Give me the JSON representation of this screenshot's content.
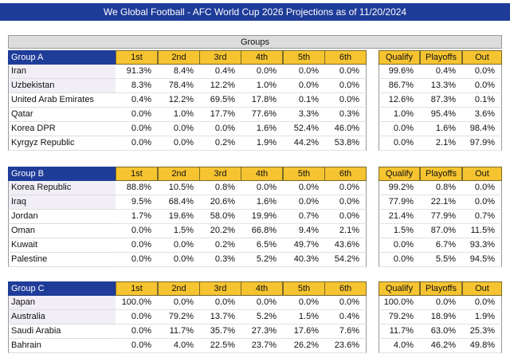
{
  "title": "We Global Football - AFC World Cup 2026 Projections as of 11/20/2024",
  "groups_header": "Groups",
  "groups": [
    {
      "name": "Group A",
      "place_headers": [
        "1st",
        "2nd",
        "3rd",
        "4th",
        "5th",
        "6th"
      ],
      "outcome_headers": [
        "Qualify",
        "Playoffs",
        "Out"
      ],
      "rows": [
        {
          "team": "Iran",
          "places": [
            "91.3%",
            "8.4%",
            "0.4%",
            "0.0%",
            "0.0%",
            "0.0%"
          ],
          "outcomes": [
            "99.6%",
            "0.4%",
            "0.0%"
          ]
        },
        {
          "team": "Uzbekistan",
          "places": [
            "8.3%",
            "78.4%",
            "12.2%",
            "1.0%",
            "0.0%",
            "0.0%"
          ],
          "outcomes": [
            "86.7%",
            "13.3%",
            "0.0%"
          ]
        },
        {
          "team": "United Arab Emirates",
          "places": [
            "0.4%",
            "12.2%",
            "69.5%",
            "17.8%",
            "0.1%",
            "0.0%"
          ],
          "outcomes": [
            "12.6%",
            "87.3%",
            "0.1%"
          ]
        },
        {
          "team": "Qatar",
          "places": [
            "0.0%",
            "1.0%",
            "17.7%",
            "77.6%",
            "3.3%",
            "0.3%"
          ],
          "outcomes": [
            "1.0%",
            "95.4%",
            "3.6%"
          ]
        },
        {
          "team": "Korea DPR",
          "places": [
            "0.0%",
            "0.0%",
            "0.0%",
            "1.6%",
            "52.4%",
            "46.0%"
          ],
          "outcomes": [
            "0.0%",
            "1.6%",
            "98.4%"
          ]
        },
        {
          "team": "Kyrgyz Republic",
          "places": [
            "0.0%",
            "0.0%",
            "0.2%",
            "1.9%",
            "44.2%",
            "53.8%"
          ],
          "outcomes": [
            "0.0%",
            "2.1%",
            "97.9%"
          ]
        }
      ]
    },
    {
      "name": "Group B",
      "place_headers": [
        "1st",
        "2nd",
        "3rd",
        "4th",
        "5th",
        "6th"
      ],
      "outcome_headers": [
        "Qualify",
        "Playoffs",
        "Out"
      ],
      "rows": [
        {
          "team": "Korea Republic",
          "places": [
            "88.8%",
            "10.5%",
            "0.8%",
            "0.0%",
            "0.0%",
            "0.0%"
          ],
          "outcomes": [
            "99.2%",
            "0.8%",
            "0.0%"
          ]
        },
        {
          "team": "Iraq",
          "places": [
            "9.5%",
            "68.4%",
            "20.6%",
            "1.6%",
            "0.0%",
            "0.0%"
          ],
          "outcomes": [
            "77.9%",
            "22.1%",
            "0.0%"
          ]
        },
        {
          "team": "Jordan",
          "places": [
            "1.7%",
            "19.6%",
            "58.0%",
            "19.9%",
            "0.7%",
            "0.0%"
          ],
          "outcomes": [
            "21.4%",
            "77.9%",
            "0.7%"
          ]
        },
        {
          "team": "Oman",
          "places": [
            "0.0%",
            "1.5%",
            "20.2%",
            "66.8%",
            "9.4%",
            "2.1%"
          ],
          "outcomes": [
            "1.5%",
            "87.0%",
            "11.5%"
          ]
        },
        {
          "team": "Kuwait",
          "places": [
            "0.0%",
            "0.0%",
            "0.2%",
            "6.5%",
            "49.7%",
            "43.6%"
          ],
          "outcomes": [
            "0.0%",
            "6.7%",
            "93.3%"
          ]
        },
        {
          "team": "Palestine",
          "places": [
            "0.0%",
            "0.0%",
            "0.3%",
            "5.2%",
            "40.3%",
            "54.2%"
          ],
          "outcomes": [
            "0.0%",
            "5.5%",
            "94.5%"
          ]
        }
      ]
    },
    {
      "name": "Group C",
      "place_headers": [
        "1st",
        "2nd",
        "3rd",
        "4th",
        "5th",
        "6th"
      ],
      "outcome_headers": [
        "Qualify",
        "Playoffs",
        "Out"
      ],
      "rows": [
        {
          "team": "Japan",
          "places": [
            "100.0%",
            "0.0%",
            "0.0%",
            "0.0%",
            "0.0%",
            "0.0%"
          ],
          "outcomes": [
            "100.0%",
            "0.0%",
            "0.0%"
          ]
        },
        {
          "team": "Australia",
          "places": [
            "0.0%",
            "79.2%",
            "13.7%",
            "5.2%",
            "1.5%",
            "0.4%"
          ],
          "outcomes": [
            "79.2%",
            "18.9%",
            "1.9%"
          ]
        },
        {
          "team": "Saudi Arabia",
          "places": [
            "0.0%",
            "11.7%",
            "35.7%",
            "27.3%",
            "17.6%",
            "7.6%"
          ],
          "outcomes": [
            "11.7%",
            "63.0%",
            "25.3%"
          ]
        },
        {
          "team": "Bahrain",
          "places": [
            "0.0%",
            "4.0%",
            "22.5%",
            "23.7%",
            "26.2%",
            "23.6%"
          ],
          "outcomes": [
            "4.0%",
            "46.2%",
            "49.8%"
          ]
        }
      ]
    }
  ]
}
